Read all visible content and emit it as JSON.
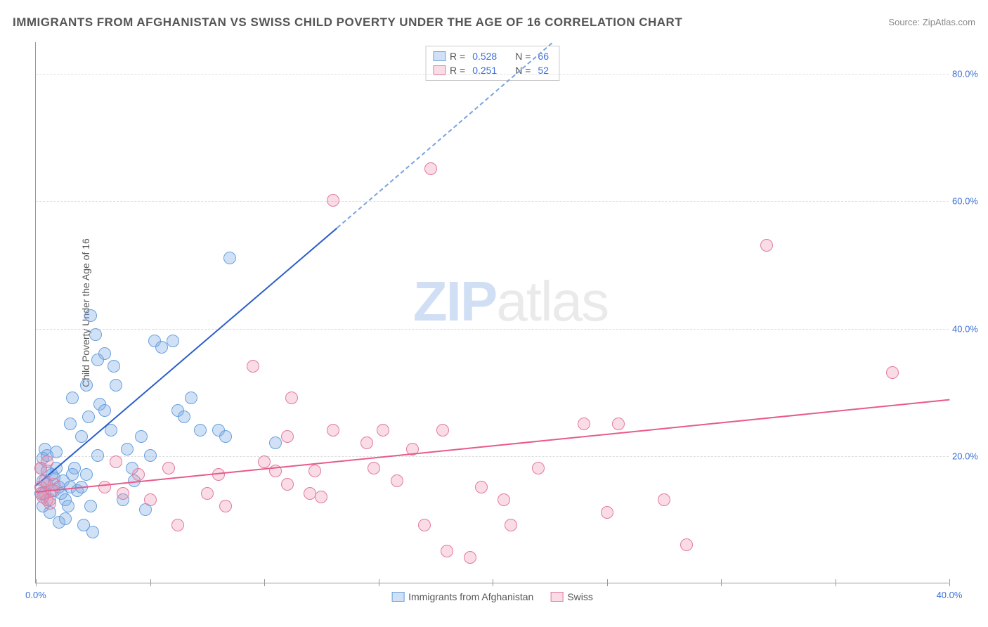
{
  "title": "IMMIGRANTS FROM AFGHANISTAN VS SWISS CHILD POVERTY UNDER THE AGE OF 16 CORRELATION CHART",
  "source_label": "Source:",
  "source_value": "ZipAtlas.com",
  "watermark_a": "ZIP",
  "watermark_b": "atlas",
  "chart": {
    "type": "scatter",
    "x_min": 0,
    "x_max": 40,
    "y_min": 0,
    "y_max": 85,
    "y_label": "Child Poverty Under the Age of 16",
    "x_ticks": [
      0,
      5,
      10,
      15,
      20,
      25,
      30,
      35,
      40
    ],
    "x_tick_labels": [
      "0.0%",
      "",
      "",
      "",
      "",
      "",
      "",
      "",
      "40.0%"
    ],
    "y_gridlines": [
      20,
      40,
      60,
      80
    ],
    "y_grid_labels": [
      "20.0%",
      "40.0%",
      "60.0%",
      "80.0%"
    ],
    "grid_color": "#dddddd",
    "background_color": "#ffffff",
    "series": [
      {
        "key": "afghan",
        "label": "Immigrants from Afghanistan",
        "point_fill": "rgba(120,170,230,0.35)",
        "point_stroke": "#6aa0dd",
        "point_radius": 9,
        "trend_color": "#2a5fc9",
        "trend_dashed_color": "#7aa3e0",
        "r_value": "0.528",
        "n_value": "66",
        "trend_solid": {
          "x1": 0,
          "y1": 15.5,
          "x2": 13.2,
          "y2": 56
        },
        "trend_dashed": {
          "x1": 13.2,
          "y1": 56,
          "x2": 22.6,
          "y2": 85
        },
        "points": [
          [
            0.2,
            18
          ],
          [
            0.3,
            16
          ],
          [
            0.4,
            14
          ],
          [
            0.5,
            15.5
          ],
          [
            0.6,
            13
          ],
          [
            0.7,
            17
          ],
          [
            0.3,
            19.5
          ],
          [
            0.8,
            14.5
          ],
          [
            0.9,
            20.5
          ],
          [
            0.4,
            21
          ],
          [
            0.5,
            17.5
          ],
          [
            1.0,
            15
          ],
          [
            1.1,
            14
          ],
          [
            1.3,
            13
          ],
          [
            1.2,
            16
          ],
          [
            1.5,
            15
          ],
          [
            1.4,
            12
          ],
          [
            1.6,
            17
          ],
          [
            1.8,
            14.5
          ],
          [
            1.7,
            18
          ],
          [
            2.0,
            15
          ],
          [
            2.2,
            17
          ],
          [
            2.1,
            9
          ],
          [
            2.4,
            12
          ],
          [
            2.5,
            8
          ],
          [
            2.7,
            20
          ],
          [
            2.0,
            23
          ],
          [
            2.3,
            26
          ],
          [
            1.5,
            25
          ],
          [
            1.6,
            29
          ],
          [
            2.8,
            28
          ],
          [
            2.2,
            31
          ],
          [
            3.0,
            27
          ],
          [
            3.3,
            24
          ],
          [
            3.0,
            36
          ],
          [
            3.4,
            34
          ],
          [
            2.7,
            35
          ],
          [
            2.4,
            42
          ],
          [
            2.6,
            39
          ],
          [
            3.5,
            31
          ],
          [
            4.0,
            21
          ],
          [
            4.2,
            18
          ],
          [
            4.3,
            16
          ],
          [
            4.6,
            23
          ],
          [
            5.0,
            20
          ],
          [
            5.2,
            38
          ],
          [
            5.5,
            37
          ],
          [
            6.0,
            38
          ],
          [
            6.2,
            27
          ],
          [
            6.8,
            29
          ],
          [
            6.5,
            26
          ],
          [
            7.2,
            24
          ],
          [
            8.0,
            24
          ],
          [
            8.3,
            23
          ],
          [
            8.5,
            51
          ],
          [
            10.5,
            22
          ],
          [
            4.8,
            11.5
          ],
          [
            3.8,
            13
          ],
          [
            0.6,
            11
          ],
          [
            1.0,
            9.5
          ],
          [
            1.3,
            10
          ],
          [
            0.2,
            14
          ],
          [
            0.3,
            12
          ],
          [
            0.9,
            18
          ],
          [
            0.5,
            20
          ],
          [
            0.8,
            16.5
          ]
        ]
      },
      {
        "key": "swiss",
        "label": "Swiss",
        "point_fill": "rgba(235,140,170,0.3)",
        "point_stroke": "#e27aa0",
        "point_radius": 9,
        "trend_color": "#e85a8c",
        "r_value": "0.251",
        "n_value": "52",
        "trend_solid": {
          "x1": 0,
          "y1": 14.5,
          "x2": 40,
          "y2": 29
        },
        "points": [
          [
            0.2,
            15
          ],
          [
            0.3,
            14
          ],
          [
            0.5,
            13
          ],
          [
            0.4,
            16
          ],
          [
            0.6,
            12.5
          ],
          [
            0.7,
            14.5
          ],
          [
            0.2,
            18
          ],
          [
            0.5,
            19
          ],
          [
            0.3,
            13.5
          ],
          [
            0.8,
            15.5
          ],
          [
            3.0,
            15
          ],
          [
            3.5,
            19
          ],
          [
            3.8,
            14
          ],
          [
            4.5,
            17
          ],
          [
            5.0,
            13
          ],
          [
            5.8,
            18
          ],
          [
            6.2,
            9
          ],
          [
            7.5,
            14
          ],
          [
            8.0,
            17
          ],
          [
            8.3,
            12
          ],
          [
            9.5,
            34
          ],
          [
            10.0,
            19
          ],
          [
            10.5,
            17.5
          ],
          [
            11.0,
            15.5
          ],
          [
            11.0,
            23
          ],
          [
            11.2,
            29
          ],
          [
            12.0,
            14
          ],
          [
            12.2,
            17.5
          ],
          [
            12.5,
            13.5
          ],
          [
            13.0,
            24
          ],
          [
            13.0,
            60
          ],
          [
            14.5,
            22
          ],
          [
            14.8,
            18
          ],
          [
            15.2,
            24
          ],
          [
            15.8,
            16
          ],
          [
            16.5,
            21
          ],
          [
            17.0,
            9
          ],
          [
            17.3,
            65
          ],
          [
            17.8,
            24
          ],
          [
            18.0,
            5
          ],
          [
            19.0,
            4
          ],
          [
            19.5,
            15
          ],
          [
            20.5,
            13
          ],
          [
            20.8,
            9
          ],
          [
            22.0,
            18
          ],
          [
            24.0,
            25
          ],
          [
            25.0,
            11
          ],
          [
            25.5,
            25
          ],
          [
            27.5,
            13
          ],
          [
            28.5,
            6
          ],
          [
            32.0,
            53
          ],
          [
            37.5,
            33
          ]
        ]
      }
    ],
    "legend_top": {
      "r_label": "R =",
      "n_label": "N ="
    }
  }
}
